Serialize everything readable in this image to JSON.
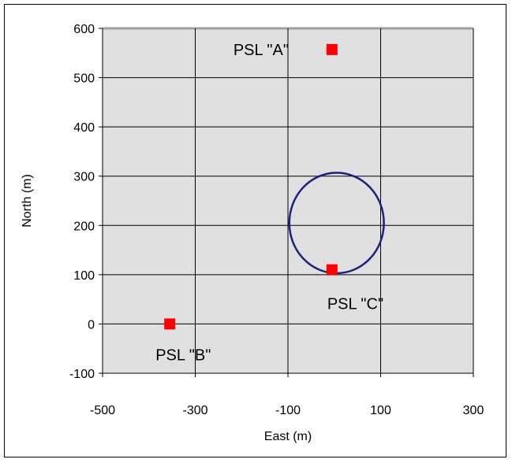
{
  "chart_data": {
    "type": "scatter",
    "title": "",
    "xlabel": "East (m)",
    "ylabel": "North (m)",
    "xlim": [
      -500,
      300
    ],
    "ylim": [
      -100,
      600
    ],
    "x_ticks": [
      -500,
      -300,
      -100,
      100,
      300
    ],
    "y_ticks": [
      -100,
      0,
      100,
      200,
      300,
      400,
      500,
      600
    ],
    "grid": true,
    "plot_background": "#e0e0e0",
    "points": [
      {
        "label": "PSL \"A\"",
        "x": -5,
        "y": 557,
        "color": "#ff0000",
        "marker": "square"
      },
      {
        "label": "PSL \"B\"",
        "x": -355,
        "y": 0,
        "color": "#ff0000",
        "marker": "square"
      },
      {
        "label": "PSL \"C\"",
        "x": -5,
        "y": 110,
        "color": "#ff0000",
        "marker": "square"
      }
    ],
    "circle": {
      "center_x": 5,
      "center_y": 205,
      "radius_x": 102,
      "radius_y": 102,
      "color": "#1a237e"
    }
  }
}
